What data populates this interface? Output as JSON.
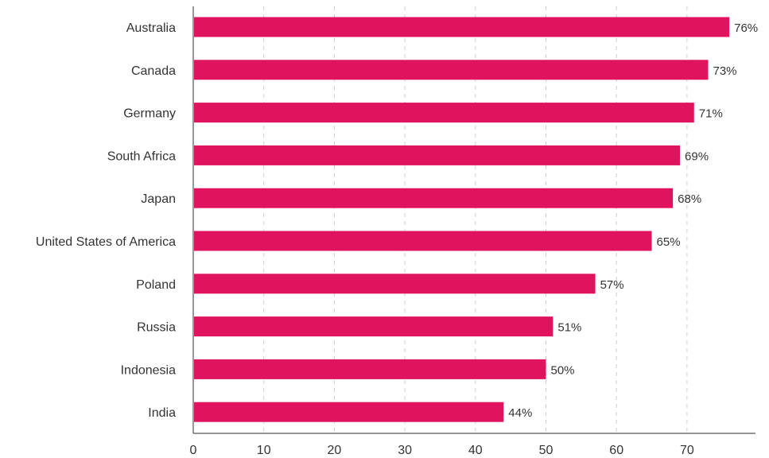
{
  "chart_data": {
    "type": "bar",
    "orientation": "horizontal",
    "categories": [
      "Australia",
      "Canada",
      "Germany",
      "South Africa",
      "Japan",
      "United States of America",
      "Poland",
      "Russia",
      "Indonesia",
      "India"
    ],
    "values": [
      76,
      73,
      71,
      69,
      68,
      65,
      57,
      51,
      50,
      44
    ],
    "data_labels": [
      "76%",
      "73%",
      "71%",
      "69%",
      "68%",
      "65%",
      "57%",
      "51%",
      "50%",
      "44%"
    ],
    "x_ticks": [
      "0",
      "10",
      "20",
      "30",
      "40",
      "50",
      "60",
      "70"
    ],
    "xlim": [
      0,
      80
    ],
    "grid": true,
    "grid_style": "dashed vertical",
    "bar_color": "#E0135F",
    "title": "",
    "xlabel": "",
    "ylabel": ""
  }
}
